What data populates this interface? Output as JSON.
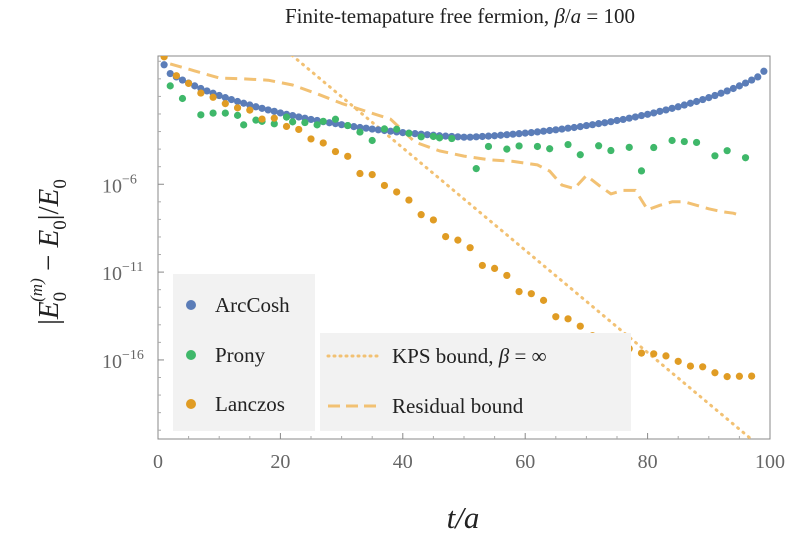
{
  "chart_data": {
    "type": "scatter",
    "title": "Finite-temapature free fermion, β/a = 100",
    "xlabel": "t/a",
    "ylabel": "|E0(m) − E0|/E0",
    "xlim": [
      0,
      100
    ],
    "ylim_log10": [
      -20.5,
      1.3
    ],
    "x_ticks": [
      0,
      20,
      40,
      60,
      80,
      100
    ],
    "x_tick_labels": [
      "0",
      "20",
      "40",
      "60",
      "80",
      "100"
    ],
    "y_ticks_log10": [
      -6,
      -11,
      -16
    ],
    "y_tick_mantissa": [
      "10",
      "10",
      "10"
    ],
    "y_tick_exponents": [
      "−6",
      "−11",
      "−16"
    ],
    "series": [
      {
        "name": "ArcCosh",
        "style": "points",
        "color": "#5b7db8",
        "x": [
          1,
          2,
          3,
          4,
          5,
          6,
          7,
          8,
          9,
          10,
          11,
          12,
          13,
          14,
          15,
          16,
          17,
          18,
          19,
          20,
          21,
          22,
          23,
          24,
          25,
          26,
          27,
          28,
          29,
          30,
          31,
          32,
          33,
          34,
          35,
          36,
          37,
          38,
          39,
          40,
          41,
          42,
          43,
          44,
          45,
          46,
          47,
          48,
          49,
          50,
          51,
          52,
          53,
          54,
          55,
          56,
          57,
          58,
          59,
          60,
          61,
          62,
          63,
          64,
          65,
          66,
          67,
          68,
          69,
          70,
          71,
          72,
          73,
          74,
          75,
          76,
          77,
          78,
          79,
          80,
          81,
          82,
          83,
          84,
          85,
          86,
          87,
          88,
          89,
          90,
          91,
          92,
          93,
          94,
          95,
          96,
          97,
          98,
          99
        ],
        "log10_y": [
          0.8,
          0.3,
          0.11,
          -0.07,
          -0.24,
          -0.4,
          -0.55,
          -0.69,
          -0.82,
          -0.95,
          -1.07,
          -1.18,
          -1.29,
          -1.39,
          -1.49,
          -1.59,
          -1.68,
          -1.77,
          -1.85,
          -1.94,
          -2.02,
          -2.09,
          -2.17,
          -2.24,
          -2.31,
          -2.37,
          -2.44,
          -2.5,
          -2.55,
          -2.61,
          -2.66,
          -2.72,
          -2.77,
          -2.81,
          -2.86,
          -2.9,
          -2.94,
          -2.98,
          -3.02,
          -3.06,
          -3.09,
          -3.12,
          -3.15,
          -3.18,
          -3.21,
          -3.24,
          -3.26,
          -3.28,
          -3.3,
          -3.32,
          -3.32,
          -3.3,
          -3.28,
          -3.26,
          -3.24,
          -3.21,
          -3.18,
          -3.15,
          -3.12,
          -3.09,
          -3.06,
          -3.02,
          -2.98,
          -2.94,
          -2.9,
          -2.86,
          -2.81,
          -2.77,
          -2.72,
          -2.66,
          -2.61,
          -2.55,
          -2.5,
          -2.44,
          -2.37,
          -2.31,
          -2.24,
          -2.17,
          -2.09,
          -2.02,
          -1.94,
          -1.85,
          -1.77,
          -1.68,
          -1.59,
          -1.49,
          -1.39,
          -1.29,
          -1.18,
          -1.07,
          -0.95,
          -0.82,
          -0.69,
          -0.55,
          -0.4,
          -0.24,
          -0.07,
          0.11,
          0.43
        ]
      },
      {
        "name": "Prony",
        "style": "points",
        "color": "#3fb86a",
        "x": [
          2,
          4,
          7,
          9,
          11,
          13,
          14,
          16,
          17,
          19,
          21,
          22,
          24,
          26,
          27,
          29,
          31,
          33,
          35,
          37,
          39,
          41,
          43,
          45,
          46,
          48,
          52,
          54,
          57,
          59,
          62,
          64,
          67,
          69,
          72,
          74,
          77,
          79,
          81,
          84,
          86,
          88,
          91,
          93,
          96
        ],
        "log10_y": [
          -0.4,
          -1.12,
          -2.05,
          -1.95,
          -1.95,
          -2.08,
          -2.62,
          -2.35,
          -2.42,
          -2.56,
          -2.18,
          -2.45,
          -2.49,
          -2.62,
          -2.42,
          -2.3,
          -2.66,
          -3.03,
          -3.51,
          -2.85,
          -2.87,
          -3.1,
          -3.3,
          -3.28,
          -3.36,
          -3.4,
          -5.11,
          -3.85,
          -4.0,
          -3.82,
          -3.85,
          -3.98,
          -3.74,
          -4.32,
          -3.81,
          -4.08,
          -3.9,
          -5.24,
          -3.91,
          -3.51,
          -3.57,
          -3.62,
          -4.38,
          -4.09,
          -4.49
        ]
      },
      {
        "name": "Lanczos",
        "style": "points",
        "color": "#e09c24",
        "x": [
          1,
          3,
          5,
          7,
          9,
          11,
          13,
          15,
          17,
          19,
          21,
          23,
          25,
          27,
          29,
          31,
          33,
          35,
          37,
          39,
          41,
          43,
          45,
          47,
          49,
          51,
          53,
          55,
          57,
          59,
          61,
          63,
          65,
          67,
          69,
          71,
          73,
          75,
          77,
          79,
          81,
          83,
          85,
          87,
          89,
          91,
          93,
          95,
          97
        ],
        "log10_y": [
          1.25,
          0.18,
          -0.26,
          -0.81,
          -1.05,
          -1.41,
          -1.65,
          -1.78,
          -2.29,
          -2.24,
          -2.71,
          -2.88,
          -3.42,
          -3.65,
          -4.14,
          -4.41,
          -5.39,
          -5.45,
          -6.07,
          -6.44,
          -6.9,
          -7.73,
          -8.03,
          -8.98,
          -9.18,
          -9.61,
          -10.62,
          -10.79,
          -11.19,
          -12.11,
          -12.23,
          -12.61,
          -13.54,
          -13.66,
          -14.08,
          -14.62,
          -14.81,
          -15.32,
          -15.35,
          -15.61,
          -15.65,
          -15.77,
          -16.08,
          -16.35,
          -16.39,
          -16.73,
          -16.95,
          -16.93,
          -16.92
        ]
      },
      {
        "name": "KPS bound, β = ∞",
        "style": "dotted",
        "color": "#f2c173",
        "x": [
          21,
          100
        ],
        "log10_y": [
          1.6,
          -21.4
        ]
      },
      {
        "name": "Residual bound",
        "style": "dashed",
        "color": "#f2c173",
        "x": [
          2,
          6,
          10,
          14,
          18,
          22,
          26,
          30,
          34,
          38,
          42,
          46,
          50,
          54,
          58,
          62,
          64,
          66,
          68,
          70,
          72,
          74,
          76,
          78,
          80,
          82,
          84,
          86,
          88,
          90,
          92,
          94,
          95
        ],
        "log10_y": [
          0.85,
          0.45,
          0.05,
          0.0,
          -0.08,
          -0.35,
          -0.85,
          -1.4,
          -1.85,
          -2.3,
          -3.6,
          -4.1,
          -4.4,
          -4.6,
          -4.7,
          -4.9,
          -5.25,
          -6.05,
          -6.25,
          -5.5,
          -6.05,
          -6.55,
          -6.35,
          -6.35,
          -7.45,
          -7.2,
          -7.0,
          -7.0,
          -7.2,
          -7.4,
          -7.55,
          -7.65,
          -7.75
        ]
      }
    ],
    "legend": {
      "placement": "bottom-left",
      "left_column": [
        "ArcCosh",
        "Prony",
        "Lanczos"
      ],
      "right_column": [
        "KPS bound, β = ∞",
        "Residual bound"
      ]
    }
  }
}
